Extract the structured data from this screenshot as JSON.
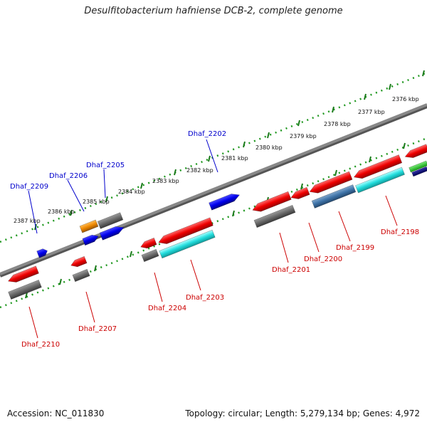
{
  "title": "Desulfitobacterium hafniense DCB-2, complete genome",
  "accession": "Accession: NC_011830",
  "summary": "Topology: circular; Length: 5,279,134 bp; Genes: 4,972",
  "colors": {
    "forward_label": "#0000cc",
    "reverse_label": "#cc0000",
    "backbone": "#888888",
    "ruler_dots": "#229922"
  },
  "ruler_labels": [
    "2376 kbp",
    "2377 kbp",
    "2378 kbp",
    "2379 kbp",
    "2380 kbp",
    "2381 kbp",
    "2382 kbp",
    "2383 kbp",
    "2384 kbp",
    "2385 kbp",
    "2386 kbp",
    "2387 kbp"
  ],
  "forward_labels": [
    "Dhaf_2202",
    "Dhaf_2205",
    "Dhaf_2206",
    "Dhaf_2209"
  ],
  "reverse_labels": [
    "Dhaf_2198",
    "Dhaf_2199",
    "Dhaf_2200",
    "Dhaf_2201",
    "Dhaf_2203",
    "Dhaf_2204",
    "Dhaf_2207",
    "Dhaf_2210"
  ]
}
